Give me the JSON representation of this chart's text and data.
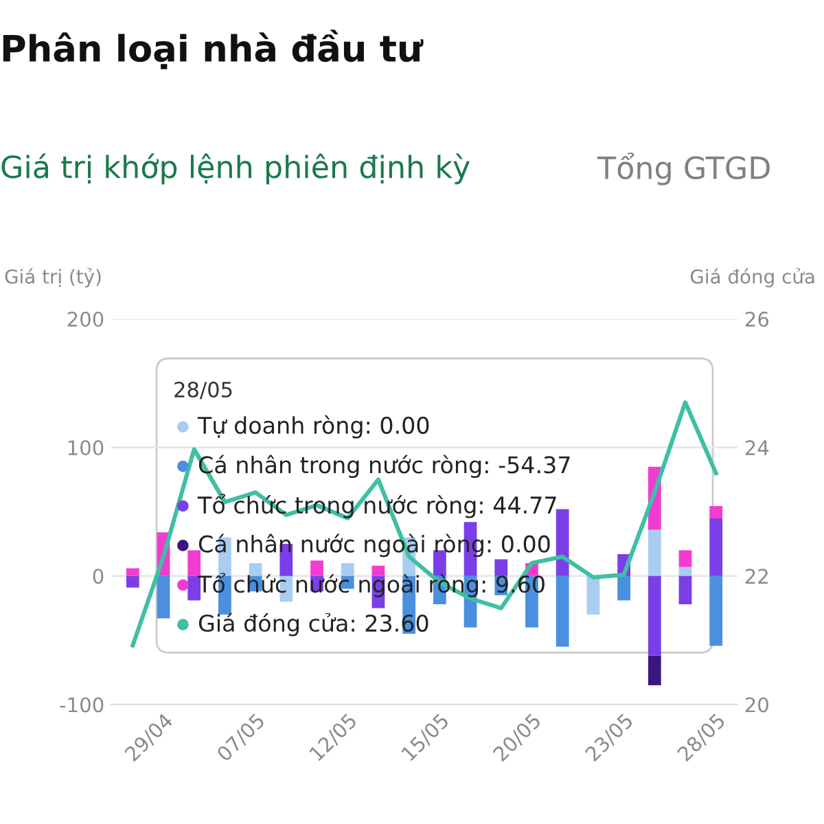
{
  "chart_data": {
    "type": "bar",
    "stacked": true,
    "title": "Phân loại nhà đầu tư",
    "subtitle": "Giá trị khớp lệnh phiên định kỳ",
    "annotations": [
      "Tổng GTGD",
      "28/05",
      "Tự doanh ròng: 0.00",
      "Cá nhân trong nước ròng: -54.37",
      "Tổ chức trong nước ròng: 44.77",
      "Cá nhân nước ngoài ròng: 0.00",
      "Tổ chức nước ngoài ròng: 9.60",
      "Giá đóng cửa: 23.60"
    ],
    "ylabel": "Giá trị (tỷ)",
    "y2label": "Giá đóng cửa",
    "categories": [
      null,
      "29/04",
      null,
      null,
      "07/05",
      null,
      null,
      "12/05",
      null,
      null,
      "15/05",
      null,
      null,
      "20/05",
      null,
      null,
      "23/05",
      null,
      null,
      "28/05"
    ],
    "series": [
      {
        "color": "#a9cdf0",
        "values": [
          0,
          0,
          0,
          30,
          10,
          -20,
          0,
          10,
          0,
          30,
          0,
          0,
          0,
          0,
          0,
          -30,
          0,
          36,
          7,
          0
        ]
      },
      {
        "color": "#4a8fe0",
        "values": [
          0,
          -33,
          0,
          -30,
          -12,
          0,
          0,
          -10,
          0,
          -45,
          -22,
          -40,
          -15,
          -40,
          -55,
          0,
          -19,
          0,
          0,
          -54.37
        ]
      },
      {
        "color": "#7a3fe6",
        "values": [
          -9,
          0,
          -19,
          0,
          0,
          25,
          -12,
          0,
          -25,
          0,
          20,
          42,
          13,
          0,
          52,
          0,
          17,
          -62,
          -22,
          44.77
        ]
      },
      {
        "color": "#3a1780",
        "values": [
          0,
          0,
          0,
          0,
          0,
          0,
          0,
          0,
          0,
          0,
          0,
          0,
          0,
          0,
          0,
          0,
          0,
          -23,
          0,
          0
        ]
      },
      {
        "color": "#f03ccf",
        "values": [
          6,
          34,
          20,
          0,
          0,
          0,
          12,
          0,
          8,
          0,
          0,
          0,
          0,
          10,
          0,
          0,
          0,
          49,
          13,
          9.6
        ]
      },
      {
        "type": "line",
        "axis": "y2",
        "color": "#3fbfa3",
        "values": [
          20.92,
          22.3,
          23.97,
          23.15,
          23.3,
          22.95,
          23.1,
          22.9,
          23.5,
          22.3,
          21.9,
          21.65,
          21.5,
          22.2,
          22.3,
          21.98,
          22.02,
          23.3,
          24.7,
          23.6
        ]
      }
    ],
    "ylim": [
      -100,
      200
    ],
    "yticks": [
      -100,
      0,
      100,
      200
    ],
    "y2lim": [
      20,
      26
    ],
    "y2ticks": [
      20,
      22,
      24,
      26
    ],
    "grid": "y",
    "marker": "none",
    "line_style": "solid"
  }
}
